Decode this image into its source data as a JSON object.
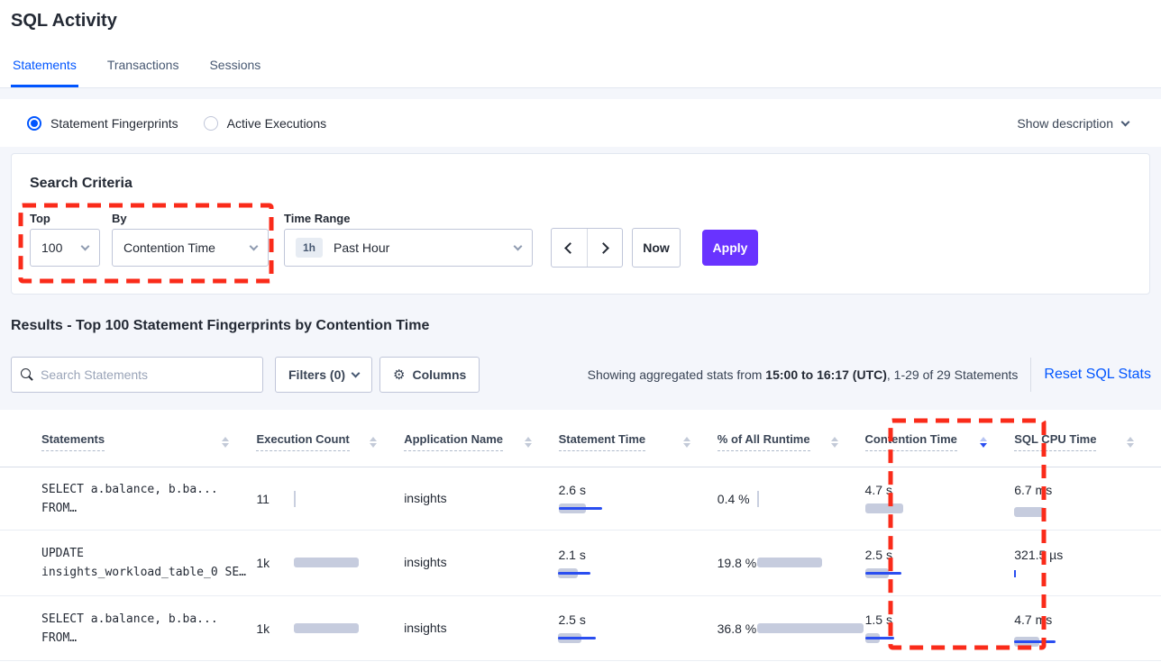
{
  "colors": {
    "accent_blue": "#0055FF",
    "apply_purple": "#6933FF",
    "bar_fill": "#C6CCDE",
    "bar_line": "#2A4EF0",
    "annotation_red": "#FA2B1A"
  },
  "header": {
    "title": "SQL Activity",
    "tabs": [
      {
        "label": "Statements",
        "active": true
      },
      {
        "label": "Transactions",
        "active": false
      },
      {
        "label": "Sessions",
        "active": false
      }
    ]
  },
  "view_toggle": {
    "options": [
      {
        "label": "Statement Fingerprints",
        "selected": true
      },
      {
        "label": "Active Executions",
        "selected": false
      }
    ],
    "show_description_label": "Show description"
  },
  "search_criteria": {
    "title": "Search Criteria",
    "top_label": "Top",
    "top_value": "100",
    "by_label": "By",
    "by_value": "Contention Time",
    "time_range_label": "Time Range",
    "time_range_badge": "1h",
    "time_range_value": "Past Hour",
    "now_label": "Now",
    "apply_label": "Apply"
  },
  "results": {
    "heading": "Results - Top 100 Statement Fingerprints by Contention Time",
    "search_placeholder": "Search Statements",
    "filters_label": "Filters (0)",
    "columns_label": "Columns",
    "columns_gear_glyph": "⚙",
    "showing_prefix": "Showing aggregated stats from ",
    "showing_range": "15:00 to 16:17 (UTC)",
    "showing_suffix": ", 1-29 of 29 Statements",
    "reset_label": "Reset SQL Stats"
  },
  "table": {
    "columns": [
      "Statements",
      "Execution Count",
      "Application Name",
      "Statement Time",
      "% of All Runtime",
      "Contention Time",
      "SQL CPU Time"
    ],
    "sorted_column": "Contention Time",
    "sort_direction": "desc",
    "rows": [
      {
        "statement_line1": "SELECT a.balance, b.ba...",
        "statement_line2": "FROM…",
        "execution_count": {
          "value": "11",
          "bar": {
            "tick": 18,
            "tick_color": "#C9CFDF"
          }
        },
        "application_name": "insights",
        "statement_time": {
          "value": "2.6 s",
          "bar": {
            "gray": 30,
            "blue": 48
          }
        },
        "pct_runtime": {
          "value": "0.4 %",
          "bar": {
            "tick": 18,
            "tick_color": "#C9CFDF"
          }
        },
        "contention_time": {
          "value": "4.7 s",
          "bar": {
            "gray": 42,
            "blue": 0
          }
        },
        "sql_cpu_time": {
          "value": "6.7 ms",
          "bar": {
            "gray": 34,
            "blue": 0
          }
        }
      },
      {
        "statement_line1": "UPDATE",
        "statement_line2": "insights_workload_table_0 SE…",
        "execution_count": {
          "value": "1k",
          "bar": {
            "gray": 72
          }
        },
        "application_name": "insights",
        "statement_time": {
          "value": "2.1 s",
          "bar": {
            "gray": 22,
            "blue": 36
          }
        },
        "pct_runtime": {
          "value": "19.8 %",
          "bar": {
            "gray": 72
          }
        },
        "contention_time": {
          "value": "2.5 s",
          "bar": {
            "gray": 26,
            "blue": 40
          }
        },
        "sql_cpu_time": {
          "value": "321.5 µs",
          "bar": {
            "tick": 8,
            "tick_color": "#2A4EF0"
          }
        }
      },
      {
        "statement_line1": "SELECT a.balance, b.ba...",
        "statement_line2": "FROM…",
        "execution_count": {
          "value": "1k",
          "bar": {
            "gray": 72
          }
        },
        "application_name": "insights",
        "statement_time": {
          "value": "2.5 s",
          "bar": {
            "gray": 26,
            "blue": 42
          }
        },
        "pct_runtime": {
          "value": "36.8 %",
          "bar": {
            "gray": 118
          }
        },
        "contention_time": {
          "value": "1.5 s",
          "bar": {
            "gray": 16,
            "blue": 32
          }
        },
        "sql_cpu_time": {
          "value": "4.7 ms",
          "bar": {
            "gray": 28,
            "blue": 46
          }
        }
      }
    ]
  }
}
